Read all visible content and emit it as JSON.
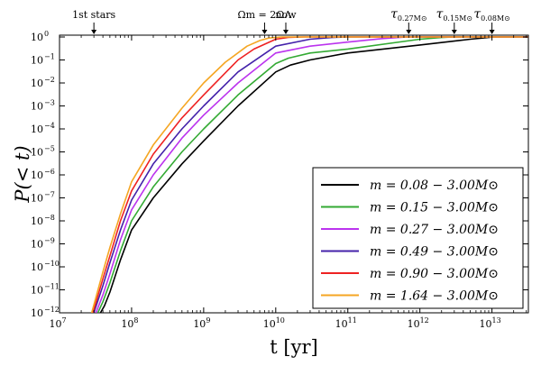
{
  "chart_data": {
    "type": "line",
    "xlabel": "t [yr]",
    "ylabel": "P(< t)",
    "xscale": "log",
    "yscale": "log",
    "xlim": [
      10000000.0,
      32000000000000.0
    ],
    "ylim": [
      1e-12,
      1.2
    ],
    "x_ticks": [
      {
        "base": "10",
        "exp": "7",
        "value": 10000000.0
      },
      {
        "base": "10",
        "exp": "8",
        "value": 100000000.0
      },
      {
        "base": "10",
        "exp": "9",
        "value": 1000000000.0
      },
      {
        "base": "10",
        "exp": "10",
        "value": 10000000000.0
      },
      {
        "base": "10",
        "exp": "11",
        "value": 100000000000.0
      },
      {
        "base": "10",
        "exp": "12",
        "value": 1000000000000.0
      },
      {
        "base": "10",
        "exp": "13",
        "value": 10000000000000.0
      }
    ],
    "y_ticks": [
      {
        "base": "10",
        "exp": "0",
        "value": 1
      },
      {
        "base": "10",
        "exp": "−1",
        "value": 0.1
      },
      {
        "base": "10",
        "exp": "−2",
        "value": 0.01
      },
      {
        "base": "10",
        "exp": "−3",
        "value": 0.001
      },
      {
        "base": "10",
        "exp": "−4",
        "value": 0.0001
      },
      {
        "base": "10",
        "exp": "−5",
        "value": 1e-05
      },
      {
        "base": "10",
        "exp": "−6",
        "value": 1e-06
      },
      {
        "base": "10",
        "exp": "−7",
        "value": 1e-07
      },
      {
        "base": "10",
        "exp": "−8",
        "value": 1e-08
      },
      {
        "base": "10",
        "exp": "−9",
        "value": 1e-09
      },
      {
        "base": "10",
        "exp": "−10",
        "value": 1e-10
      },
      {
        "base": "10",
        "exp": "−11",
        "value": 1e-11
      },
      {
        "base": "10",
        "exp": "−12",
        "value": 1e-12
      }
    ],
    "annotations": [
      {
        "label": "1st stars",
        "x": 30000000.0
      },
      {
        "label": "Ωm = 2ΩΛ",
        "x": 7000000000.0
      },
      {
        "label": "now",
        "x": 13800000000.0
      },
      {
        "label": "τ0.27M⊙",
        "x": 700000000000.0
      },
      {
        "label": "τ0.15M⊙",
        "x": 3000000000000.0
      },
      {
        "label": "τ0.08M⊙",
        "x": 10000000000000.0
      }
    ],
    "legend_position": "lower-right",
    "series": [
      {
        "name": "m = 0.08 − 3.00M⊙",
        "color": "#000000",
        "x": [
          37000000.0,
          42000000.0,
          50000000.0,
          70000000.0,
          100000000.0,
          200000000.0,
          500000000.0,
          1000000000.0,
          3000000000.0,
          10000000000.0,
          16000000000.0,
          30000000000.0,
          100000000000.0,
          1000000000000.0,
          5000000000000.0,
          10000000000000.0,
          15000000000000.0,
          32000000000000.0
        ],
        "y": [
          1e-12,
          2e-12,
          8e-12,
          2e-10,
          4e-09,
          1e-07,
          3e-06,
          3e-05,
          0.001,
          0.03,
          0.06,
          0.1,
          0.2,
          0.45,
          0.8,
          0.98,
          1,
          1
        ]
      },
      {
        "name": "m = 0.15 − 3.00M⊙",
        "color": "#33aa33",
        "x": [
          34000000.0,
          40000000.0,
          50000000.0,
          70000000.0,
          100000000.0,
          200000000.0,
          500000000.0,
          1000000000.0,
          3000000000.0,
          10000000000.0,
          15000000000.0,
          30000000000.0,
          100000000000.0,
          1000000000000.0,
          2000000000000.0,
          3000000000000.0,
          32000000000000.0
        ],
        "y": [
          1e-12,
          3e-12,
          2e-11,
          5e-10,
          1e-08,
          3e-07,
          1e-05,
          0.0001,
          0.003,
          0.07,
          0.12,
          0.2,
          0.3,
          0.8,
          0.95,
          1,
          1
        ]
      },
      {
        "name": "m = 0.27 − 3.00M⊙",
        "color": "#bb33ee",
        "x": [
          32000000.0,
          40000000.0,
          50000000.0,
          70000000.0,
          100000000.0,
          200000000.0,
          500000000.0,
          1000000000.0,
          3000000000.0,
          10000000000.0,
          30000000000.0,
          100000000000.0,
          300000000000.0,
          600000000000.0,
          800000000000.0,
          32000000000000.0
        ],
        "y": [
          1e-12,
          6e-12,
          5e-11,
          1.5e-09,
          3e-08,
          1e-06,
          4e-05,
          0.0004,
          0.01,
          0.2,
          0.4,
          0.6,
          0.85,
          0.98,
          1,
          1
        ]
      },
      {
        "name": "m = 0.49 − 3.00M⊙",
        "color": "#4422aa",
        "x": [
          30000000.0,
          40000000.0,
          50000000.0,
          70000000.0,
          100000000.0,
          200000000.0,
          500000000.0,
          1000000000.0,
          3000000000.0,
          10000000000.0,
          30000000000.0,
          60000000000.0,
          100000000000.0,
          200000000000.0,
          32000000000000.0
        ],
        "y": [
          1e-12,
          1.5e-11,
          1.5e-10,
          4e-09,
          8e-08,
          3e-06,
          0.0001,
          0.001,
          0.03,
          0.4,
          0.8,
          0.95,
          1,
          1,
          1
        ]
      },
      {
        "name": "m = 0.90 − 3.00M⊙",
        "color": "#ee2222",
        "x": [
          29000000.0,
          40000000.0,
          50000000.0,
          70000000.0,
          100000000.0,
          200000000.0,
          500000000.0,
          1000000000.0,
          3000000000.0,
          5000000000.0,
          10000000000.0,
          15000000000.0,
          25000000000.0,
          32000000000000.0
        ],
        "y": [
          1e-12,
          3e-11,
          3e-10,
          1e-08,
          2e-07,
          8e-06,
          0.0003,
          0.003,
          0.1,
          0.3,
          0.8,
          0.97,
          1,
          1
        ]
      },
      {
        "name": "m = 1.64 − 3.00M⊙",
        "color": "#f5a623",
        "x": [
          28000000.0,
          40000000.0,
          50000000.0,
          70000000.0,
          100000000.0,
          200000000.0,
          500000000.0,
          1000000000.0,
          2000000000.0,
          4000000000.0,
          6000000000.0,
          8000000000.0,
          12000000000.0,
          32000000000000.0
        ],
        "y": [
          1e-12,
          6e-11,
          7e-10,
          2e-08,
          5e-07,
          2e-05,
          0.0008,
          0.01,
          0.08,
          0.4,
          0.7,
          0.9,
          1,
          1
        ]
      }
    ]
  }
}
